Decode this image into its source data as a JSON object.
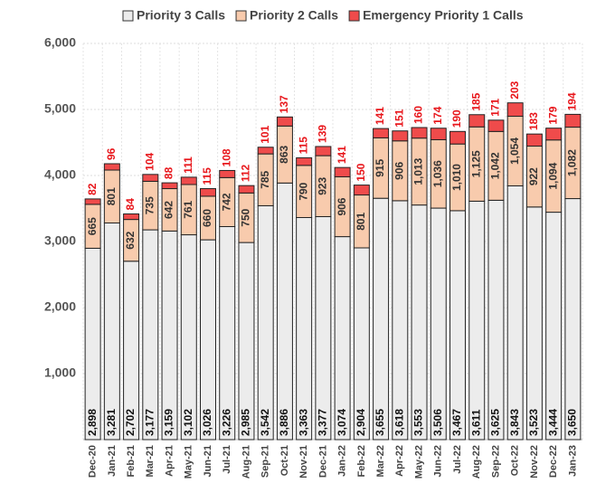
{
  "chart_data": {
    "type": "stacked_bar",
    "categories": [
      "Dec-20",
      "Jan-21",
      "Feb-21",
      "Mar-21",
      "Apr-21",
      "May-21",
      "Jun-21",
      "Jul-21",
      "Aug-21",
      "Sep-21",
      "Oct-21",
      "Nov-21",
      "Dec-21",
      "Jan-22",
      "Feb-22",
      "Mar-22",
      "Apr-22",
      "May-22",
      "Jun-22",
      "Jul-22",
      "Aug-22",
      "Sep-22",
      "Oct-22",
      "Nov-22",
      "Dec-22",
      "Jan-23"
    ],
    "series": [
      {
        "name": "Priority 3 Calls",
        "color": "#ececec",
        "label_color": "#111111",
        "values": [
          2898,
          3281,
          2702,
          3177,
          3159,
          3102,
          3026,
          3226,
          2985,
          3542,
          3886,
          3363,
          3377,
          3074,
          2904,
          3655,
          3618,
          3553,
          3506,
          3467,
          3611,
          3625,
          3843,
          3523,
          3444,
          3650
        ],
        "value_labels": [
          "2,898",
          "3,281",
          "2,702",
          "3,177",
          "3,159",
          "3,102",
          "3,026",
          "3,226",
          "2,985",
          "3,542",
          "3,886",
          "3,363",
          "3,377",
          "3,074",
          "2,904",
          "3,655",
          "3,618",
          "3,553",
          "3,506",
          "3,467",
          "3,611",
          "3,625",
          "3,843",
          "3,523",
          "3,444",
          "3,650"
        ]
      },
      {
        "name": "Priority 2 Calls",
        "color": "#f8cbad",
        "label_color": "#333333",
        "values": [
          665,
          801,
          632,
          735,
          642,
          761,
          660,
          742,
          750,
          785,
          863,
          790,
          923,
          906,
          801,
          915,
          906,
          1013,
          1036,
          1010,
          1125,
          1042,
          1054,
          922,
          1094,
          1082
        ],
        "value_labels": [
          "665",
          "801",
          "632",
          "735",
          "642",
          "761",
          "660",
          "742",
          "750",
          "785",
          "863",
          "790",
          "923",
          "906",
          "801",
          "915",
          "906",
          "1,013",
          "1,036",
          "1,010",
          "1,125",
          "1,042",
          "1,054",
          "922",
          "1,094",
          "1,082"
        ]
      },
      {
        "name": "Emergency Priority 1 Calls",
        "color": "#ef4b4b",
        "label_color": "#e8161b",
        "values": [
          82,
          96,
          84,
          104,
          88,
          111,
          115,
          108,
          112,
          101,
          137,
          115,
          139,
          141,
          150,
          141,
          151,
          160,
          174,
          190,
          185,
          171,
          203,
          183,
          179,
          194
        ]
      }
    ],
    "ylim": [
      0,
      6000
    ],
    "yticks": [
      {
        "value": 1000,
        "label": "1,000"
      },
      {
        "value": 2000,
        "label": "2,000"
      },
      {
        "value": 3000,
        "label": "3,000"
      },
      {
        "value": 4000,
        "label": "4,000"
      },
      {
        "value": 5000,
        "label": "5,000"
      },
      {
        "value": 6000,
        "label": "6,000"
      }
    ],
    "grid": true
  }
}
